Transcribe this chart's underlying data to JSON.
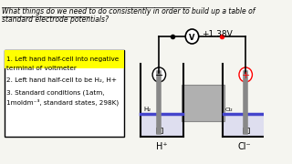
{
  "title_line1": "What things do we need to do consistently in order to build up a table of",
  "title_line2": "standard electrode potentials?",
  "box_items": [
    "1. Left hand half-cell into negative",
    "terminal of voltmeter",
    "",
    "2. Left hand half-cell to be H₂, H+",
    "",
    "3. Standard conditions (1atm,",
    "1moldm⁻³, standard states, 298K)"
  ],
  "voltage_label": "+1.38V",
  "left_label_top": "−",
  "right_label_top": "+",
  "left_solution": "H⁺",
  "right_solution": "Cl⁻",
  "left_gas": "H₂",
  "right_gas": "Cl₂",
  "bg_color": "#f5f5f0",
  "box_highlight": "#ffff00",
  "box_border": "#000000",
  "diagram_bg": "#e8e8e8",
  "water_color": "#4444cc",
  "electrode_color": "#888888",
  "tube_color": "#aaaaaa"
}
